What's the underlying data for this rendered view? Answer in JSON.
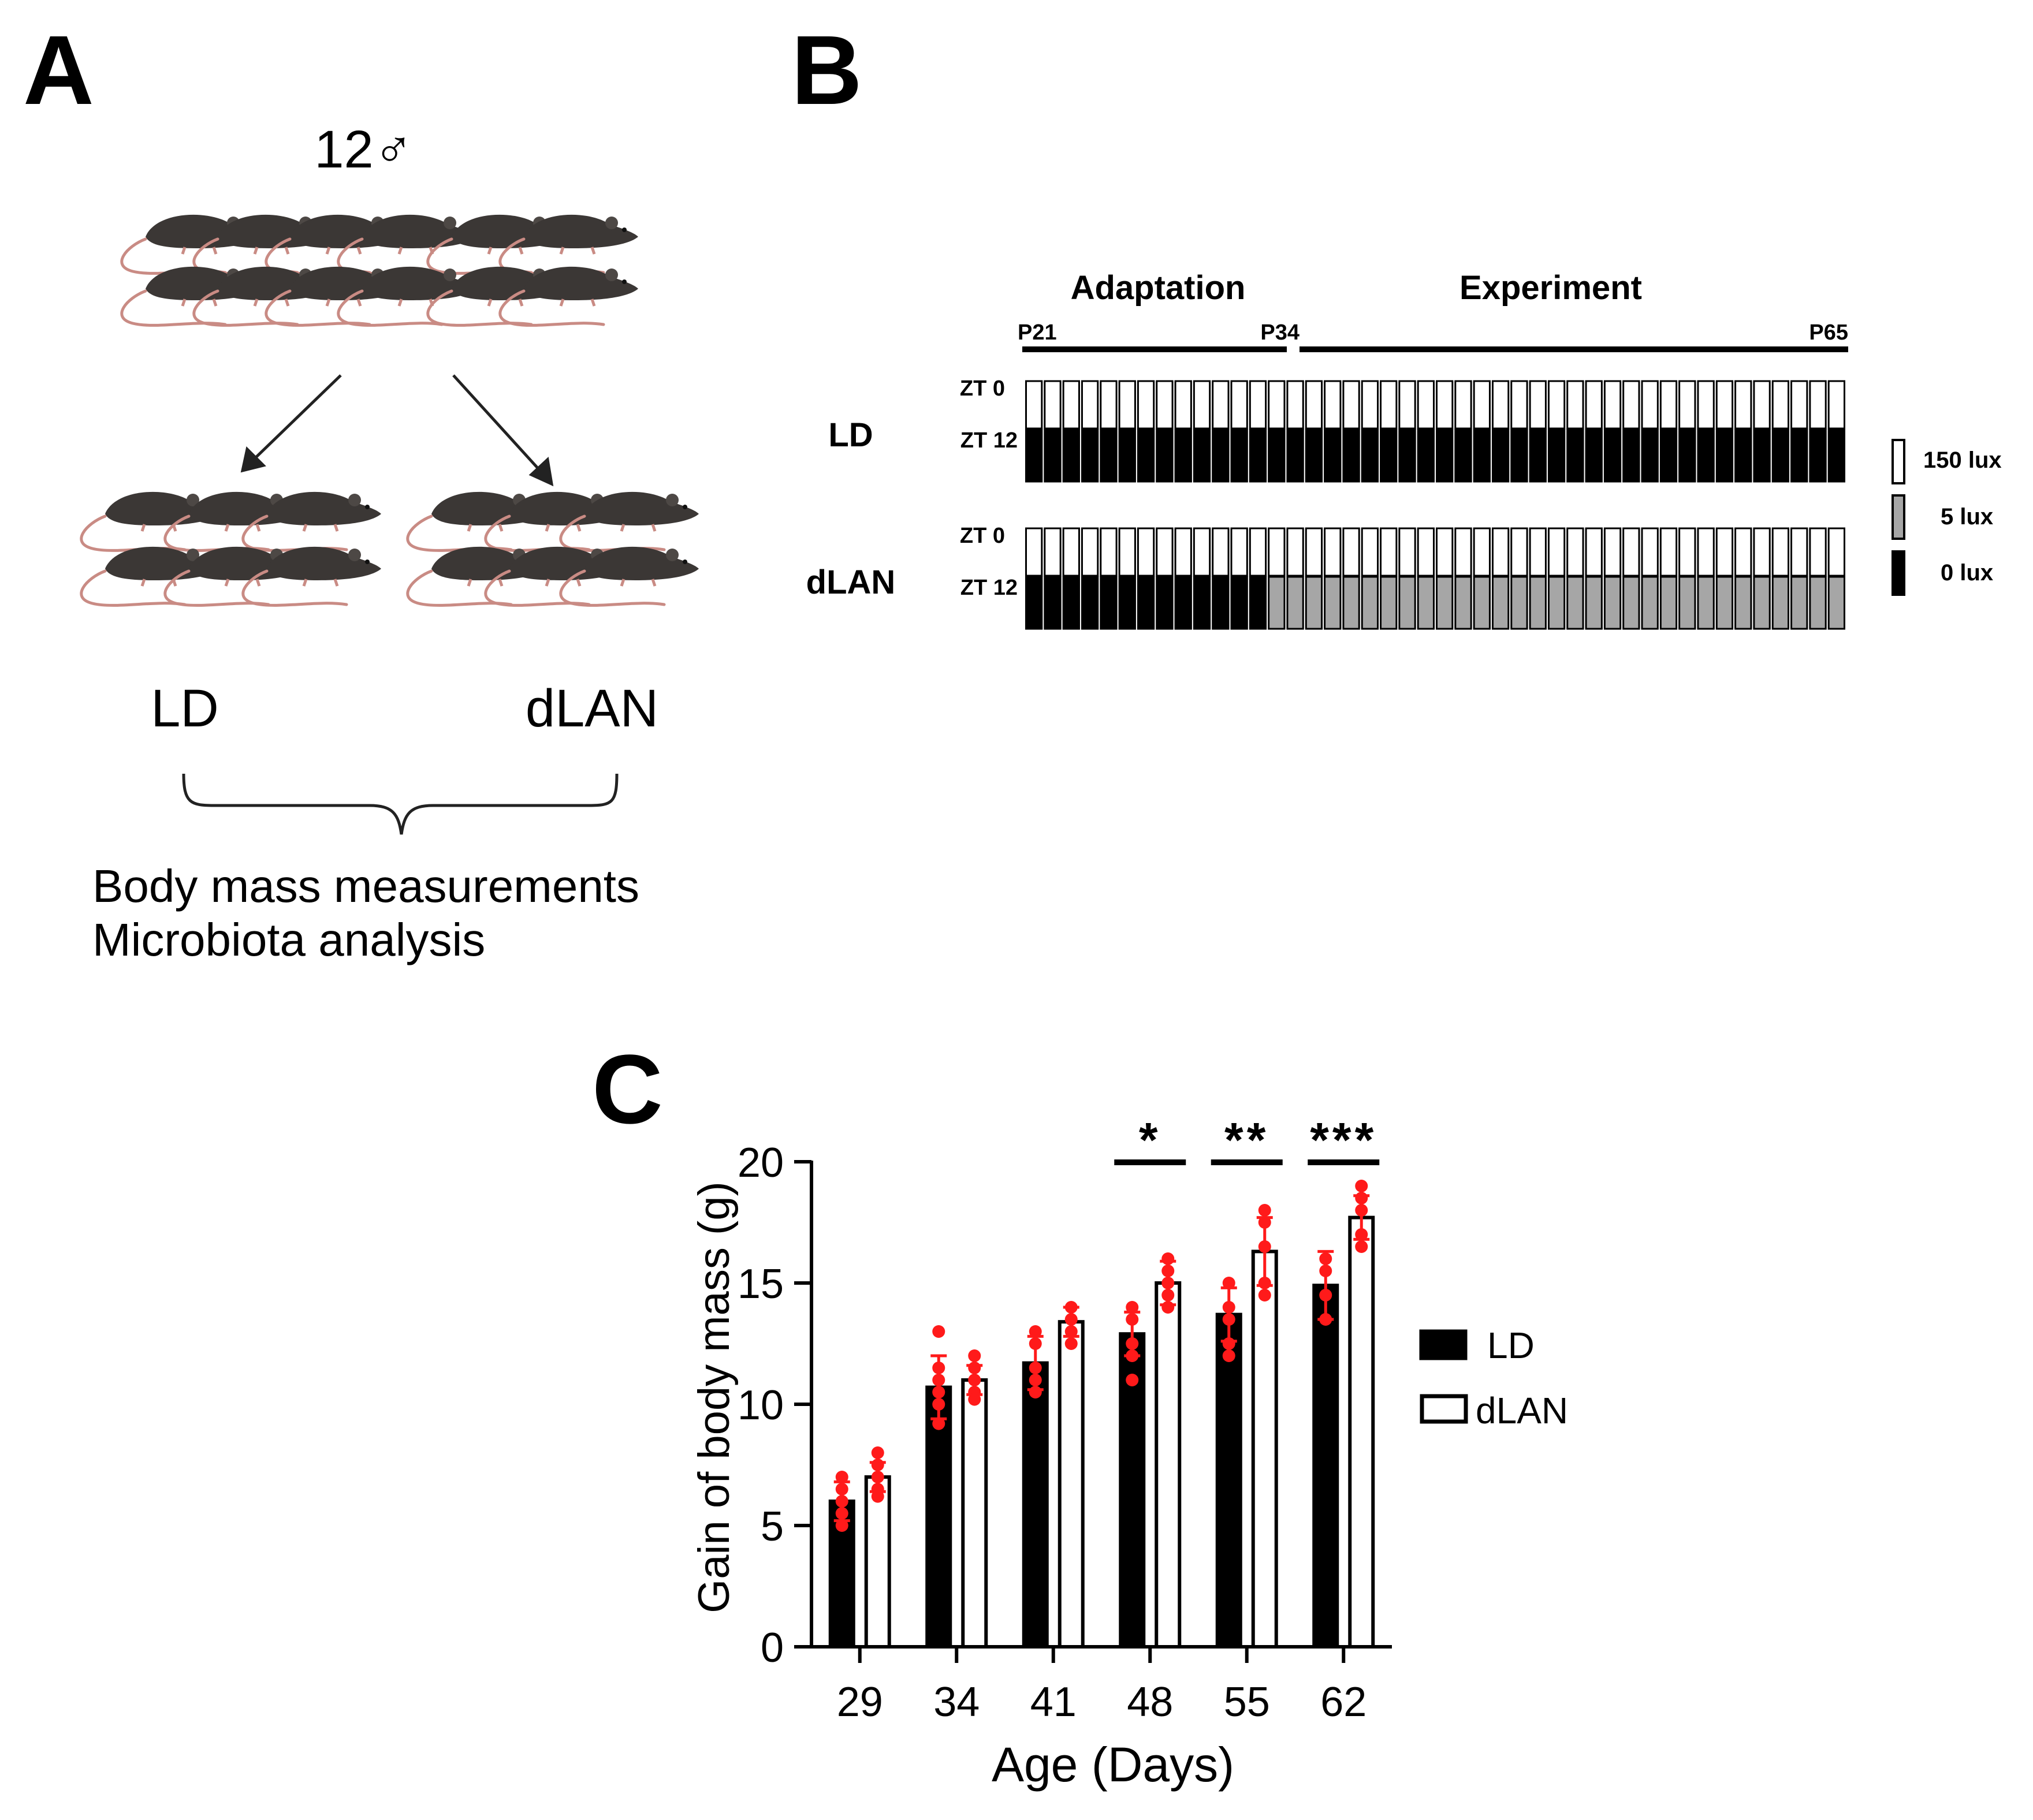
{
  "panels": {
    "a": "A",
    "b": "B",
    "c": "C"
  },
  "panel_a": {
    "cohort": "12♂",
    "group_ld": "LD",
    "group_dlan": "dLAN",
    "outcomes": [
      "Body mass measurements",
      "Microbiota analysis"
    ]
  },
  "panel_b": {
    "phase_adaptation": "Adaptation",
    "phase_experiment": "Experiment",
    "day_start": "P21",
    "day_switch": "P34",
    "day_end": "P65",
    "row_ld": "LD",
    "row_dlan": "dLAN",
    "zt0": "ZT 0",
    "zt12": "ZT 12",
    "adaptation_days": 13,
    "experiment_days": 31,
    "legend": [
      {
        "label": "150 lux",
        "color": "#ffffff"
      },
      {
        "label": "5 lux",
        "color": "#a6a6a6"
      },
      {
        "label": "0 lux",
        "color": "#000000"
      }
    ]
  },
  "colors": {
    "ld_bar": "#000000",
    "dlan_bar": "#ffffff",
    "points": "#ff1a1a",
    "dim_gray": "#a6a6a6"
  },
  "chart_data": {
    "type": "bar",
    "xlabel": "Age (Days)",
    "ylabel": "Gain of body mass (g)",
    "ylim": [
      0,
      20
    ],
    "yticks": [
      0,
      5,
      10,
      15,
      20
    ],
    "categories": [
      "29",
      "34",
      "41",
      "48",
      "55",
      "62"
    ],
    "series": [
      {
        "name": "LD",
        "values": [
          6.0,
          10.7,
          11.7,
          12.9,
          13.7,
          14.9
        ],
        "sd": [
          0.8,
          1.3,
          1.1,
          0.9,
          1.1,
          1.4
        ],
        "points": [
          [
            7,
            6.5,
            6,
            5.5,
            5
          ],
          [
            13,
            11.5,
            11,
            10.5,
            10,
            9.2
          ],
          [
            13,
            12.5,
            11.5,
            11,
            10.5
          ],
          [
            14,
            13.5,
            12.5,
            12,
            11
          ],
          [
            15,
            14,
            13.5,
            12.5,
            12
          ],
          [
            16,
            15.5,
            14.5,
            13.5
          ]
        ]
      },
      {
        "name": "dLAN",
        "values": [
          7.0,
          11.0,
          13.4,
          15.0,
          16.3,
          17.7
        ],
        "sd": [
          0.6,
          0.6,
          0.6,
          0.9,
          1.4,
          0.9
        ],
        "points": [
          [
            8,
            7.5,
            7,
            6.5,
            6.2
          ],
          [
            12,
            11.5,
            11,
            10.5,
            10.2
          ],
          [
            14,
            13.5,
            13,
            12.5
          ],
          [
            16,
            15.5,
            15,
            14.5,
            14
          ],
          [
            18,
            17.5,
            16.5,
            15,
            14.5
          ],
          [
            19,
            18.5,
            18,
            17,
            16.5
          ]
        ]
      }
    ],
    "significance": [
      {
        "category": "48",
        "label": "*"
      },
      {
        "category": "55",
        "label": "**"
      },
      {
        "category": "62",
        "label": "***"
      }
    ],
    "legend": [
      "LD",
      "dLAN"
    ]
  }
}
